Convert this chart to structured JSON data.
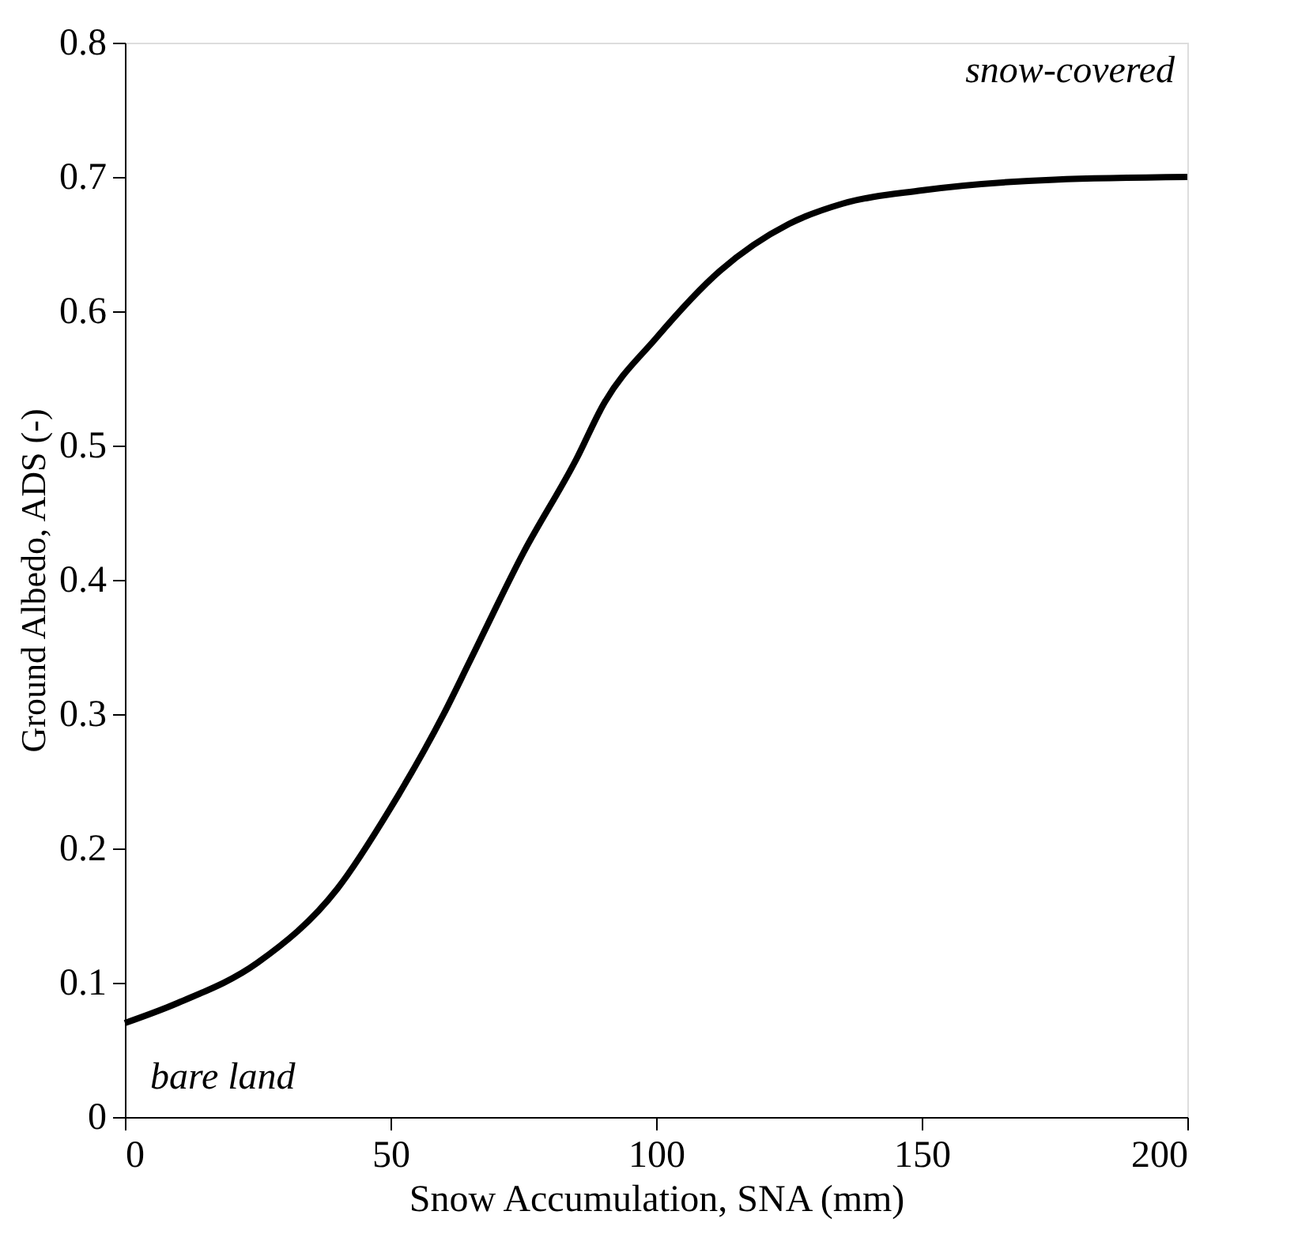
{
  "chart_data": {
    "type": "line",
    "xlabel": "Snow Accumulation, SNA (mm)",
    "ylabel": "Ground Albedo, ADS (-)",
    "series": [
      {
        "color": "#000000",
        "x": [
          0,
          10,
          25,
          40,
          50,
          60,
          65,
          75,
          85,
          90,
          100,
          112,
          125,
          135,
          150,
          175,
          200
        ],
        "values": [
          0.07,
          0.085,
          0.115,
          0.17,
          0.23,
          0.3,
          0.34,
          0.42,
          0.49,
          0.53,
          0.58,
          0.63,
          0.665,
          0.68,
          0.69,
          0.698,
          0.7
        ]
      }
    ],
    "xlim": [
      0,
      200
    ],
    "xticks": [
      0,
      50,
      100,
      150,
      200
    ],
    "ylim": [
      0,
      0.8
    ],
    "yticks": [
      0,
      0.1,
      0.2,
      0.3,
      0.4,
      0.5,
      0.6,
      0.7,
      0.8
    ],
    "grid": false,
    "marker": "none",
    "line_style": "solid",
    "annotations": [
      "snow-covered",
      "bare land"
    ]
  }
}
